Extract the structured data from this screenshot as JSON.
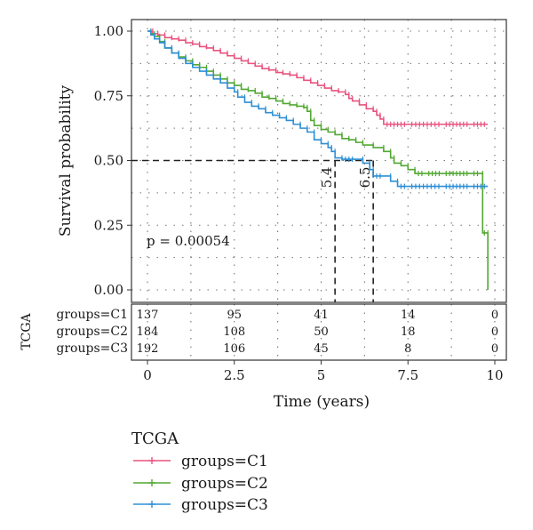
{
  "chart_data": {
    "type": "line",
    "xlabel": "Time (years)",
    "ylabel": "Survival probability",
    "xlim": [
      0,
      10
    ],
    "ylim": [
      0,
      1
    ],
    "x_ticks": [
      "0",
      "2.5",
      "5",
      "7.5",
      "10"
    ],
    "y_ticks": [
      "0.00",
      "0.25",
      "0.50",
      "0.75",
      "1.00"
    ],
    "grid": "dotted",
    "p_value_text": "p = 0.00054",
    "median_lines": [
      {
        "label": "5.4",
        "x": 5.4,
        "y": 0.5
      },
      {
        "label": "6.5",
        "x": 6.5,
        "y": 0.5
      }
    ],
    "series": [
      {
        "name": "groups=C1",
        "color": "#e8537f",
        "points": [
          [
            0,
            1
          ],
          [
            0.15,
            0.99
          ],
          [
            0.3,
            0.985
          ],
          [
            0.5,
            0.975
          ],
          [
            0.7,
            0.97
          ],
          [
            0.9,
            0.965
          ],
          [
            1.1,
            0.955
          ],
          [
            1.3,
            0.95
          ],
          [
            1.5,
            0.94
          ],
          [
            1.7,
            0.935
          ],
          [
            1.9,
            0.925
          ],
          [
            2.1,
            0.915
          ],
          [
            2.3,
            0.905
          ],
          [
            2.5,
            0.895
          ],
          [
            2.7,
            0.885
          ],
          [
            2.9,
            0.875
          ],
          [
            3.1,
            0.865
          ],
          [
            3.3,
            0.855
          ],
          [
            3.5,
            0.85
          ],
          [
            3.7,
            0.84
          ],
          [
            3.9,
            0.835
          ],
          [
            4.1,
            0.83
          ],
          [
            4.3,
            0.82
          ],
          [
            4.5,
            0.81
          ],
          [
            4.7,
            0.8
          ],
          [
            4.9,
            0.79
          ],
          [
            5.1,
            0.78
          ],
          [
            5.3,
            0.77
          ],
          [
            5.5,
            0.765
          ],
          [
            5.7,
            0.755
          ],
          [
            5.8,
            0.74
          ],
          [
            5.9,
            0.73
          ],
          [
            6.1,
            0.715
          ],
          [
            6.3,
            0.7
          ],
          [
            6.5,
            0.69
          ],
          [
            6.6,
            0.675
          ],
          [
            6.7,
            0.66
          ],
          [
            6.8,
            0.64
          ],
          [
            7.5,
            0.64
          ],
          [
            8.5,
            0.64
          ],
          [
            9.3,
            0.64
          ],
          [
            9.8,
            0.64
          ]
        ]
      },
      {
        "name": "groups=C2",
        "color": "#52a832",
        "points": [
          [
            0,
            1
          ],
          [
            0.1,
            0.99
          ],
          [
            0.2,
            0.98
          ],
          [
            0.35,
            0.96
          ],
          [
            0.5,
            0.935
          ],
          [
            0.7,
            0.915
          ],
          [
            0.9,
            0.9
          ],
          [
            1.1,
            0.885
          ],
          [
            1.3,
            0.87
          ],
          [
            1.5,
            0.86
          ],
          [
            1.7,
            0.845
          ],
          [
            1.9,
            0.83
          ],
          [
            2.1,
            0.815
          ],
          [
            2.3,
            0.8
          ],
          [
            2.5,
            0.79
          ],
          [
            2.7,
            0.775
          ],
          [
            2.9,
            0.77
          ],
          [
            3.1,
            0.76
          ],
          [
            3.3,
            0.745
          ],
          [
            3.5,
            0.74
          ],
          [
            3.7,
            0.73
          ],
          [
            3.9,
            0.72
          ],
          [
            4.1,
            0.715
          ],
          [
            4.3,
            0.71
          ],
          [
            4.5,
            0.705
          ],
          [
            4.6,
            0.69
          ],
          [
            4.7,
            0.655
          ],
          [
            4.8,
            0.635
          ],
          [
            5,
            0.62
          ],
          [
            5.2,
            0.61
          ],
          [
            5.4,
            0.6
          ],
          [
            5.6,
            0.585
          ],
          [
            5.8,
            0.58
          ],
          [
            6,
            0.57
          ],
          [
            6.2,
            0.56
          ],
          [
            6.5,
            0.55
          ],
          [
            6.8,
            0.535
          ],
          [
            7,
            0.51
          ],
          [
            7.1,
            0.49
          ],
          [
            7.3,
            0.48
          ],
          [
            7.5,
            0.465
          ],
          [
            7.7,
            0.45
          ],
          [
            8,
            0.45
          ],
          [
            8.5,
            0.45
          ],
          [
            9.3,
            0.45
          ],
          [
            9.6,
            0.45
          ],
          [
            9.65,
            0.22
          ],
          [
            9.75,
            0.22
          ],
          [
            9.8,
            0
          ]
        ]
      },
      {
        "name": "groups=C3",
        "color": "#2d8fd5",
        "points": [
          [
            0,
            1
          ],
          [
            0.1,
            0.985
          ],
          [
            0.2,
            0.97
          ],
          [
            0.35,
            0.955
          ],
          [
            0.5,
            0.935
          ],
          [
            0.7,
            0.915
          ],
          [
            0.9,
            0.895
          ],
          [
            1.1,
            0.875
          ],
          [
            1.3,
            0.86
          ],
          [
            1.5,
            0.845
          ],
          [
            1.7,
            0.83
          ],
          [
            1.9,
            0.815
          ],
          [
            2.1,
            0.8
          ],
          [
            2.3,
            0.78
          ],
          [
            2.5,
            0.765
          ],
          [
            2.6,
            0.745
          ],
          [
            2.8,
            0.725
          ],
          [
            3,
            0.71
          ],
          [
            3.2,
            0.7
          ],
          [
            3.4,
            0.685
          ],
          [
            3.6,
            0.675
          ],
          [
            3.8,
            0.665
          ],
          [
            4,
            0.655
          ],
          [
            4.2,
            0.64
          ],
          [
            4.4,
            0.625
          ],
          [
            4.6,
            0.61
          ],
          [
            4.8,
            0.58
          ],
          [
            5,
            0.565
          ],
          [
            5.2,
            0.55
          ],
          [
            5.3,
            0.535
          ],
          [
            5.4,
            0.51
          ],
          [
            5.6,
            0.505
          ],
          [
            6,
            0.505
          ],
          [
            6.2,
            0.49
          ],
          [
            6.4,
            0.465
          ],
          [
            6.5,
            0.44
          ],
          [
            6.8,
            0.44
          ],
          [
            7,
            0.42
          ],
          [
            7.2,
            0.4
          ],
          [
            7.5,
            0.4
          ],
          [
            8.5,
            0.4
          ],
          [
            9.3,
            0.4
          ],
          [
            9.8,
            0.4
          ]
        ]
      }
    ],
    "risk_table": {
      "title": "TCGA",
      "times": [
        0,
        2.5,
        5,
        7.5,
        10
      ],
      "rows": [
        {
          "label": "groups=C1",
          "counts": [
            "137",
            "95",
            "41",
            "14",
            "0"
          ]
        },
        {
          "label": "groups=C2",
          "counts": [
            "184",
            "108",
            "50",
            "18",
            "0"
          ]
        },
        {
          "label": "groups=C3",
          "counts": [
            "192",
            "106",
            "45",
            "8",
            "0"
          ]
        }
      ]
    },
    "legend": {
      "title": "TCGA",
      "position": "bottom"
    }
  }
}
